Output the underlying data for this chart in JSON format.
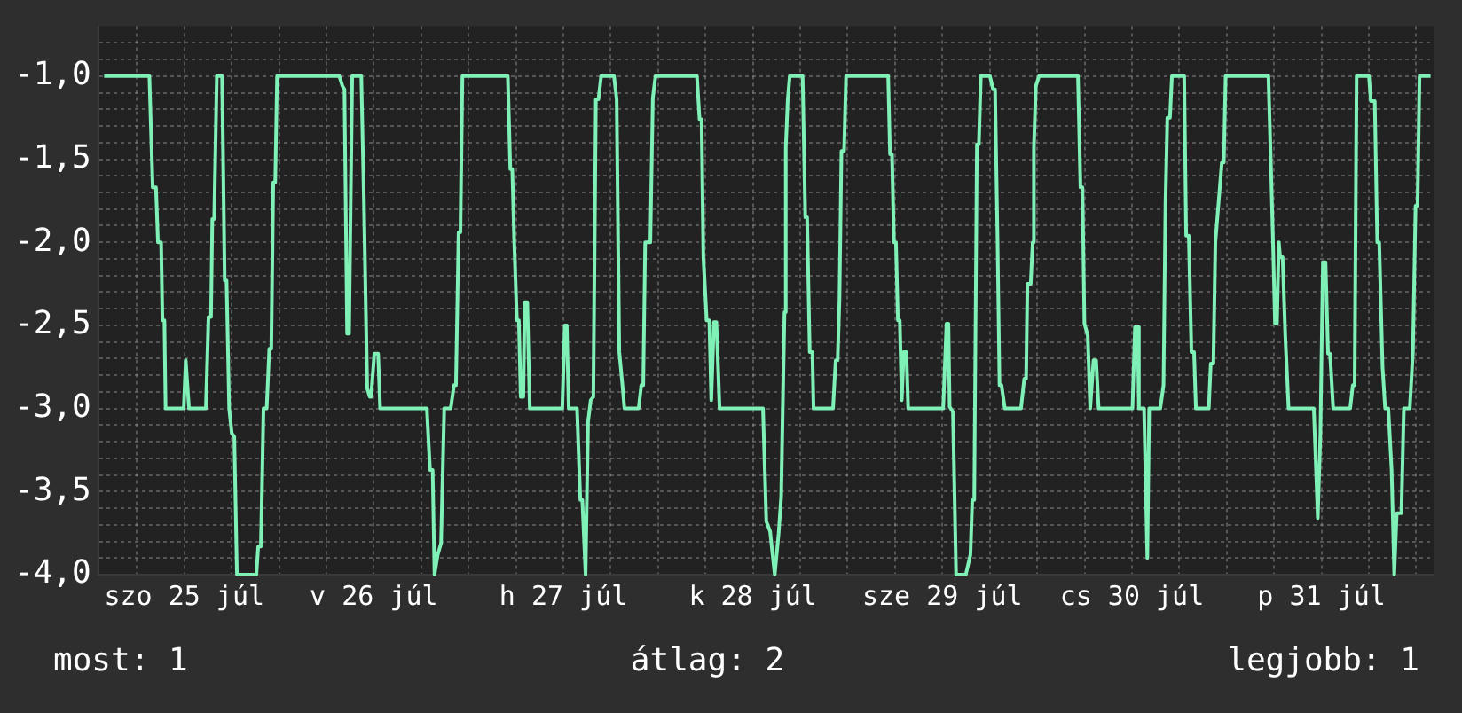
{
  "chart_data": {
    "type": "line",
    "annotations": [
      "most: 1",
      "átlag: 2",
      "legjobb: 1"
    ],
    "x": [
      "--07-25T01:51",
      "--07-25T07:35",
      "--07-25T08:00",
      "--07-25T08:25",
      "--07-25T08:40",
      "--07-25T09:04",
      "--07-25T09:14",
      "--07-25T09:29",
      "--07-25T09:38",
      "--07-25T11:56",
      "--07-25T12:11",
      "--07-25T12:36",
      "--07-25T14:44",
      "--07-25T15:04",
      "--07-25T15:23",
      "--07-25T15:33",
      "--07-25T15:47",
      "--07-25T16:07",
      "--07-25T16:47",
      "--07-25T17:07",
      "--07-25T17:21",
      "--07-25T17:41",
      "--07-25T18:01",
      "--07-25T18:20",
      "--07-25T18:40",
      "--07-25T21:08",
      "--07-25T21:22",
      "--07-25T21:42",
      "--07-25T22:02",
      "--07-25T22:26",
      "--07-25T22:46",
      "--07-25T23:01",
      "--07-25T23:16",
      "--07-25T23:31",
      "--07-25T23:45",
      "--07-26T07:38",
      "--07-26T08:02",
      "--07-26T08:17",
      "--07-26T08:37",
      "--07-26T08:52",
      "--07-26T09:16",
      "--07-26T10:25",
      "--07-26T10:45",
      "--07-26T10:55",
      "--07-26T11:10",
      "--07-26T11:29",
      "--07-26T11:39",
      "--07-26T12:04",
      "--07-26T12:33",
      "--07-26T12:48",
      "--07-26T18:43",
      "--07-26T19:07",
      "--07-26T19:27",
      "--07-26T19:41",
      "--07-26T20:06",
      "--07-26T20:31",
      "--07-26T20:55",
      "--07-26T21:44",
      "--07-26T22:09",
      "--07-26T22:24",
      "--07-26T22:44",
      "--07-26T22:58",
      "--07-26T23:13",
      "--07-27T04:58",
      "--07-27T05:17",
      "--07-27T05:32",
      "--07-27T05:47",
      "--07-27T06:07",
      "--07-27T06:22",
      "--07-27T06:36",
      "--07-27T06:56",
      "--07-27T07:06",
      "--07-27T07:26",
      "--07-27T07:45",
      "--07-27T11:52",
      "--07-27T12:11",
      "--07-27T12:26",
      "--07-27T12:41",
      "--07-27T13:44",
      "--07-27T14:09",
      "--07-27T14:24",
      "--07-27T14:49",
      "--07-27T15:08",
      "--07-27T15:28",
      "--07-27T15:48",
      "--07-27T16:07",
      "--07-27T16:27",
      "--07-27T16:47",
      "--07-27T18:25",
      "--07-27T18:45",
      "--07-27T19:05",
      "--07-27T19:29",
      "--07-27T19:44",
      "--07-27T21:32",
      "--07-27T21:52",
      "--07-27T22:07",
      "--07-27T22:22",
      "--07-27T23:01",
      "--07-27T23:20",
      "--07-27T23:40",
      "--07-28T04:55",
      "--07-28T05:15",
      "--07-28T05:30",
      "--07-28T05:44",
      "--07-28T06:09",
      "--07-28T06:29",
      "--07-28T06:44",
      "--07-28T07:04",
      "--07-28T07:23",
      "--07-28T07:47",
      "--07-28T13:17",
      "--07-28T13:42",
      "--07-28T14:11",
      "--07-28T14:46",
      "--07-28T15:16",
      "--07-28T15:35",
      "--07-28T16:00",
      "--07-28T16:10",
      "--07-28T16:25",
      "--07-28T16:40",
      "--07-28T18:18",
      "--07-28T18:38",
      "--07-28T18:52",
      "--07-28T19:12",
      "--07-28T19:32",
      "--07-28T19:41",
      "--07-28T22:09",
      "--07-28T22:29",
      "--07-28T22:44",
      "--07-28T22:58",
      "--07-28T23:13",
      "--07-28T23:33",
      "--07-28T23:48",
      "--07-29T05:08",
      "--07-29T05:22",
      "--07-29T05:37",
      "--07-29T05:52",
      "--07-29T06:07",
      "--07-29T06:22",
      "--07-29T06:36",
      "--07-29T06:51",
      "--07-29T07:06",
      "--07-29T07:26",
      "--07-29T07:40",
      "--07-29T12:06",
      "--07-29T12:31",
      "--07-29T12:46",
      "--07-29T12:55",
      "--07-29T13:20",
      "--07-29T13:44",
      "--07-29T14:58",
      "--07-29T15:33",
      "--07-29T15:47",
      "--07-29T16:02",
      "--07-29T16:22",
      "--07-29T16:37",
      "--07-29T16:52",
      "--07-29T18:01",
      "--07-29T18:25",
      "--07-29T18:40",
      "--07-29T18:59",
      "--07-29T19:14",
      "--07-29T19:29",
      "--07-29T19:54",
      "--07-29T21:57",
      "--07-29T22:22",
      "--07-29T22:36",
      "--07-29T22:46",
      "--07-29T23:11",
      "--07-29T23:26",
      "--07-29T23:35",
      "--07-29T23:50",
      "--07-30T00:14",
      "--07-30T05:10",
      "--07-30T05:29",
      "--07-30T05:44",
      "--07-30T05:59",
      "--07-30T06:24",
      "--07-30T06:43",
      "--07-30T07:08",
      "--07-30T07:28",
      "--07-30T07:47",
      "--07-30T12:04",
      "--07-30T12:23",
      "--07-30T12:43",
      "--07-30T12:53",
      "--07-30T13:32",
      "--07-30T13:57",
      "--07-30T14:11",
      "--07-30T15:35",
      "--07-30T16:00",
      "--07-30T16:15",
      "--07-30T16:29",
      "--07-30T16:49",
      "--07-30T17:04",
      "--07-30T18:37",
      "--07-30T18:52",
      "--07-30T19:12",
      "--07-30T19:32",
      "--07-30T19:52",
      "--07-30T20:06",
      "--07-30T21:44",
      "--07-30T21:59",
      "--07-30T22:19",
      "--07-30T22:34",
      "--07-30T23:23",
      "--07-30T23:38",
      "--07-30T23:52",
      "--07-31T05:17",
      "--07-31T05:37",
      "--07-31T05:52",
      "--07-31T06:07",
      "--07-31T06:22",
      "--07-31T06:36",
      "--07-31T06:46",
      "--07-31T07:05",
      "--07-31T07:25",
      "--07-31T07:50",
      "--07-31T11:02",
      "--07-31T11:32",
      "--07-31T11:52",
      "--07-31T12:11",
      "--07-31T12:31",
      "--07-31T12:50",
      "--07-31T13:05",
      "--07-31T13:29",
      "--07-31T15:38",
      "--07-31T15:58",
      "--07-31T16:12",
      "--07-31T16:27",
      "--07-31T18:01",
      "--07-31T18:15",
      "--07-31T18:45",
      "--07-31T19:04",
      "--07-31T19:19",
      "--07-31T19:44",
      "--07-31T20:04",
      "--07-31T20:28",
      "--07-31T20:53",
      "--07-31T21:13",
      "--07-31T21:32",
      "--07-31T22:07",
      "--07-31T22:26",
      "--07-31T23:11",
      "--07-31T23:35",
      "--07-31T23:55",
      "--08-01T00:10",
      "--08-01T00:25",
      "--08-01T01:49"
    ],
    "series": [
      {
        "color": "#7ff0b6",
        "values": [
          -1,
          -1,
          -1.67,
          -1.67,
          -2.0,
          -2.0,
          -2.47,
          -2.47,
          -3.0,
          -3.0,
          -2.71,
          -3.0,
          -3.0,
          -2.45,
          -2.45,
          -1.86,
          -1.86,
          -1,
          -1,
          -2.23,
          -2.23,
          -3.0,
          -3.15,
          -3.17,
          -4.0,
          -4.0,
          -3.83,
          -3.83,
          -3.0,
          -3.0,
          -2.64,
          -2.64,
          -1.64,
          -1.64,
          -1,
          -1,
          -1.06,
          -1.08,
          -2.55,
          -2.55,
          -1,
          -1,
          -1.76,
          -1.76,
          -2.88,
          -2.93,
          -2.93,
          -2.67,
          -2.67,
          -3.0,
          -3.0,
          -3.37,
          -3.37,
          -4.0,
          -3.88,
          -3.81,
          -3.0,
          -3.0,
          -2.86,
          -2.86,
          -1.94,
          -1.94,
          -1,
          -1,
          -1.56,
          -1.56,
          -2.0,
          -2.47,
          -2.47,
          -2.93,
          -2.93,
          -2.36,
          -2.36,
          -3.0,
          -3.0,
          -2.5,
          -2.5,
          -3.0,
          -3.0,
          -3.55,
          -3.55,
          -4.0,
          -3.08,
          -2.95,
          -2.93,
          -1.14,
          -1.14,
          -1,
          -1,
          -1.14,
          -2.66,
          -2.86,
          -3.0,
          -3.0,
          -2.86,
          -2.86,
          -2.0,
          -2.0,
          -1.13,
          -1,
          -1,
          -1.26,
          -1.26,
          -2.09,
          -2.47,
          -2.47,
          -2.95,
          -2.48,
          -2.48,
          -3.0,
          -3.0,
          -3.68,
          -3.74,
          -4.0,
          -3.75,
          -3.53,
          -2.42,
          -1.43,
          -1.14,
          -1,
          -1,
          -1.85,
          -1.85,
          -2.66,
          -2.66,
          -3.0,
          -3.0,
          -2.71,
          -2.71,
          -2.34,
          -1.45,
          -1.45,
          -1,
          -1,
          -1.47,
          -1.47,
          -2.0,
          -2.0,
          -2.47,
          -2.47,
          -2.95,
          -2.66,
          -2.66,
          -3.0,
          -3.0,
          -2.49,
          -2.49,
          -2.99,
          -3.02,
          -4.0,
          -4.0,
          -3.88,
          -3.55,
          -3.55,
          -1.41,
          -1.41,
          -1,
          -1,
          -1.08,
          -1.08,
          -2.0,
          -2.86,
          -2.86,
          -3.0,
          -3.0,
          -2.82,
          -2.82,
          -2.25,
          -2.25,
          -2.0,
          -1.43,
          -1.06,
          -1,
          -1,
          -1.67,
          -1.67,
          -2.49,
          -2.56,
          -3.0,
          -2.71,
          -2.71,
          -3.0,
          -3.0,
          -2.51,
          -2.51,
          -3.0,
          -3.0,
          -3.9,
          -3.0,
          -3.0,
          -2.86,
          -1.76,
          -1.25,
          -1.25,
          -1,
          -1,
          -1.96,
          -1.96,
          -2.66,
          -2.66,
          -3.0,
          -3.0,
          -2.73,
          -2.73,
          -2.0,
          -1.52,
          -1.52,
          -1,
          -1,
          -1.56,
          -2.0,
          -2.49,
          -2.49,
          -2.0,
          -2.09,
          -2.09,
          -2.56,
          -3.0,
          -3.0,
          -3.66,
          -3.15,
          -2.12,
          -2.12,
          -2.67,
          -2.67,
          -3.0,
          -3.0,
          -2.86,
          -2.86,
          -1,
          -1,
          -1.15,
          -1.15,
          -2.0,
          -2.0,
          -2.75,
          -3.0,
          -3.0,
          -3.37,
          -4.0,
          -3.63,
          -3.63,
          -3.0,
          -3.0,
          -2.66,
          -1.78,
          -1.78,
          -1,
          -1
        ]
      }
    ],
    "xlim": [
      "--07-25T01:06",
      "--08-01T02:12"
    ],
    "xticks": [
      {
        "value": "--07-25T06:00",
        "label": null
      },
      {
        "value": "--07-25T12:00",
        "label": "szo 25 júl"
      },
      {
        "value": "--07-25T18:00",
        "label": null
      },
      {
        "value": "--07-26T00:00",
        "label": null
      },
      {
        "value": "--07-26T06:00",
        "label": null
      },
      {
        "value": "--07-26T12:00",
        "label": "v 26 júl"
      },
      {
        "value": "--07-26T18:00",
        "label": null
      },
      {
        "value": "--07-27T00:00",
        "label": null
      },
      {
        "value": "--07-27T06:00",
        "label": null
      },
      {
        "value": "--07-27T12:00",
        "label": "h 27 júl"
      },
      {
        "value": "--07-27T18:00",
        "label": null
      },
      {
        "value": "--07-28T00:00",
        "label": null
      },
      {
        "value": "--07-28T06:00",
        "label": null
      },
      {
        "value": "--07-28T12:00",
        "label": "k 28 júl"
      },
      {
        "value": "--07-28T18:00",
        "label": null
      },
      {
        "value": "--07-29T00:00",
        "label": null
      },
      {
        "value": "--07-29T06:00",
        "label": null
      },
      {
        "value": "--07-29T12:00",
        "label": "sze 29 júl"
      },
      {
        "value": "--07-29T18:00",
        "label": null
      },
      {
        "value": "--07-30T00:00",
        "label": null
      },
      {
        "value": "--07-30T06:00",
        "label": null
      },
      {
        "value": "--07-30T12:00",
        "label": "cs 30 júl"
      },
      {
        "value": "--07-30T18:00",
        "label": null
      },
      {
        "value": "--07-31T00:00",
        "label": null
      },
      {
        "value": "--07-31T06:00",
        "label": null
      },
      {
        "value": "--07-31T12:00",
        "label": "p 31 júl"
      },
      {
        "value": "--07-31T18:00",
        "label": null
      },
      {
        "value": "--08-01T00:00",
        "label": null
      }
    ],
    "ylim": [
      -4,
      -0.7
    ],
    "yticks": [
      {
        "value": -4,
        "label": "-4,0"
      },
      {
        "value": -3.9,
        "label": null
      },
      {
        "value": -3.8,
        "label": null
      },
      {
        "value": -3.7,
        "label": null
      },
      {
        "value": -3.6,
        "label": null
      },
      {
        "value": -3.5,
        "label": "-3,5"
      },
      {
        "value": -3.4,
        "label": null
      },
      {
        "value": -3.3,
        "label": null
      },
      {
        "value": -3.2,
        "label": null
      },
      {
        "value": -3.1,
        "label": null
      },
      {
        "value": -3,
        "label": "-3,0"
      },
      {
        "value": -2.9,
        "label": null
      },
      {
        "value": -2.8,
        "label": null
      },
      {
        "value": -2.7,
        "label": null
      },
      {
        "value": -2.6,
        "label": null
      },
      {
        "value": -2.5,
        "label": "-2,5"
      },
      {
        "value": -2.4,
        "label": null
      },
      {
        "value": -2.3,
        "label": null
      },
      {
        "value": -2.2,
        "label": null
      },
      {
        "value": -2.1,
        "label": null
      },
      {
        "value": -2,
        "label": "-2,0"
      },
      {
        "value": -1.9,
        "label": null
      },
      {
        "value": -1.8,
        "label": null
      },
      {
        "value": -1.7,
        "label": null
      },
      {
        "value": -1.6,
        "label": null
      },
      {
        "value": -1.5,
        "label": "-1,5"
      },
      {
        "value": -1.4,
        "label": null
      },
      {
        "value": -1.3,
        "label": null
      },
      {
        "value": -1.2,
        "label": null
      },
      {
        "value": -1.1,
        "label": null
      },
      {
        "value": -1,
        "label": "-1,0"
      },
      {
        "value": -0.9,
        "label": null
      },
      {
        "value": -0.8,
        "label": null
      }
    ],
    "grid": true,
    "legend": false,
    "marker": "none",
    "line_style": "solid"
  }
}
